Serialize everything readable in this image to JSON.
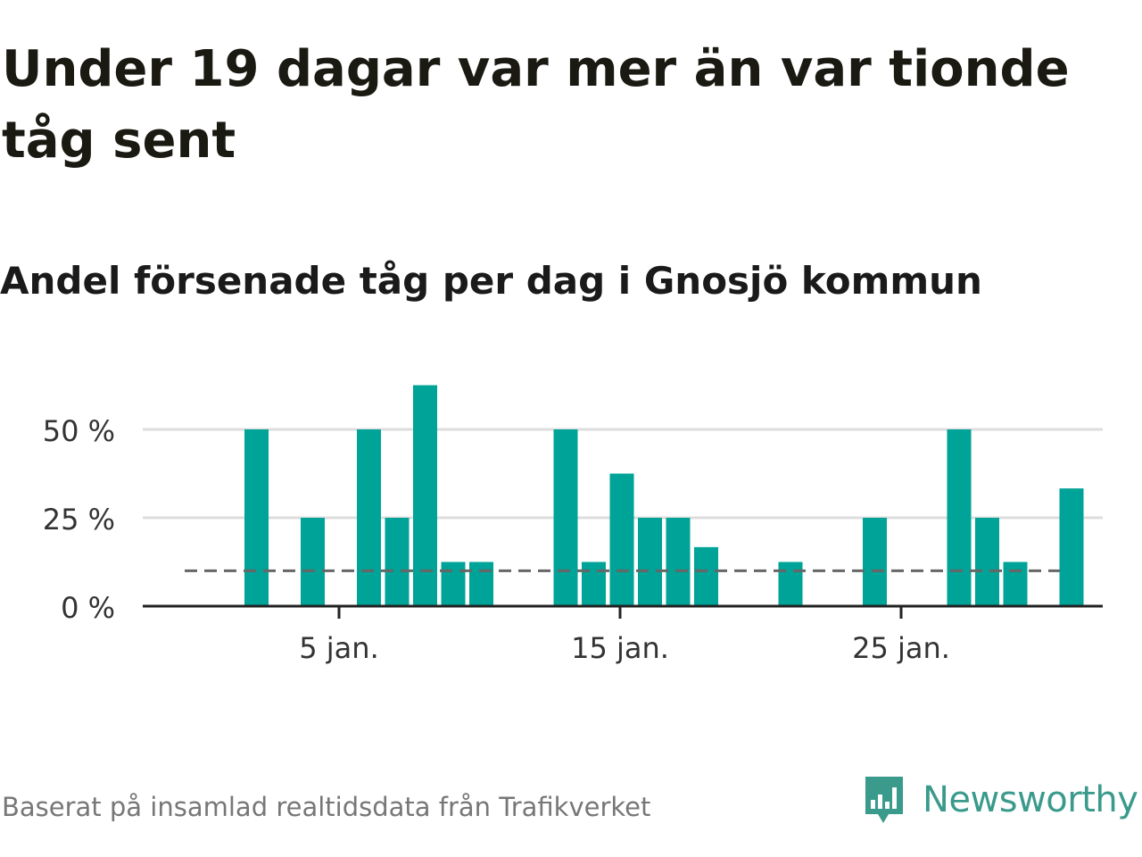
{
  "header": {
    "title": "Under 19 dagar var mer än var tionde tåg sent",
    "subtitle": "Andel försenade tåg per dag i Gnosjö kommun"
  },
  "footer": {
    "source": "Baserat på insamlad realtidsdata från Trafikverket",
    "brand": "Newsworthy"
  },
  "colors": {
    "bar": "#00a397",
    "reference_line": "#666666",
    "grid": "#dddddd",
    "axis": "#222222",
    "brand": "#3a9a8c"
  },
  "chart_data": {
    "type": "bar",
    "x": [
      1,
      2,
      3,
      4,
      5,
      6,
      7,
      8,
      9,
      10,
      11,
      12,
      13,
      14,
      15,
      16,
      17,
      18,
      19,
      20,
      21,
      22,
      23,
      24,
      25,
      26,
      27,
      28,
      29,
      30,
      31
    ],
    "values": [
      0,
      50,
      0,
      25,
      0,
      50,
      25,
      62.5,
      12.5,
      12.5,
      0,
      0,
      50,
      12.5,
      37.5,
      25,
      25,
      16.7,
      0,
      0,
      12.5,
      0,
      0,
      25,
      0,
      0,
      50,
      25,
      12.5,
      0,
      33.3
    ],
    "x_ticks": [
      {
        "x": 5,
        "label": "5 jan."
      },
      {
        "x": 15,
        "label": "15 jan."
      },
      {
        "x": 25,
        "label": "25 jan."
      }
    ],
    "y_ticks": [
      {
        "value": 0,
        "label": "0 %"
      },
      {
        "value": 25,
        "label": "25 %"
      },
      {
        "value": 50,
        "label": "50 %"
      }
    ],
    "ylim": [
      0,
      65
    ],
    "reference_line": 10,
    "grid": true,
    "legend": "none"
  }
}
